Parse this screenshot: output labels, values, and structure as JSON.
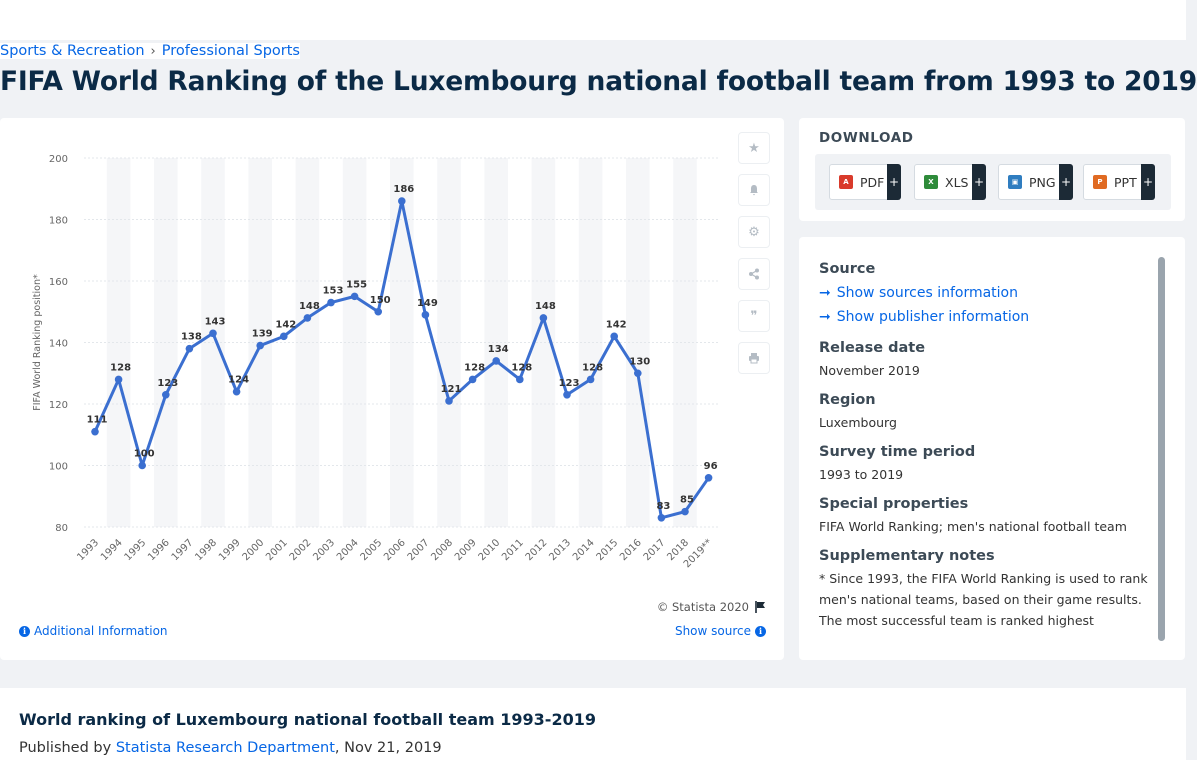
{
  "breadcrumb": {
    "items": [
      "Sports & Recreation",
      "Professional Sports"
    ],
    "separator": "›"
  },
  "page_title": "FIFA World Ranking of the Luxembourg national football team from 1993 to 2019",
  "chart_data": {
    "type": "line",
    "title": "",
    "xlabel": "",
    "ylabel": "FIFA World Ranking position*",
    "categories": [
      "1993",
      "1994",
      "1995",
      "1996",
      "1997",
      "1998",
      "1999",
      "2000",
      "2001",
      "2002",
      "2003",
      "2004",
      "2005",
      "2006",
      "2007",
      "2008",
      "2009",
      "2010",
      "2011",
      "2012",
      "2013",
      "2014",
      "2015",
      "2016",
      "2017",
      "2018",
      "2019**"
    ],
    "series": [
      {
        "name": "",
        "values": [
          111,
          128,
          100,
          123,
          138,
          143,
          124,
          139,
          142,
          148,
          153,
          155,
          150,
          186,
          149,
          121,
          128,
          134,
          128,
          148,
          123,
          128,
          142,
          130,
          83,
          85,
          96
        ]
      }
    ],
    "ylim": [
      80,
      200
    ],
    "yticks": [
      80,
      100,
      120,
      140,
      160,
      180,
      200
    ],
    "grid": "alternating vertical bands",
    "line_color": "#3b6fd0"
  },
  "toolbar": {
    "icons": [
      "star-icon",
      "bell-icon",
      "gear-icon",
      "share-icon",
      "quote-icon",
      "print-icon"
    ]
  },
  "chart_footer": {
    "copyright": "© Statista 2020",
    "additional_info": "Additional Information",
    "show_source": "Show source"
  },
  "download": {
    "title": "DOWNLOAD",
    "buttons": [
      {
        "label": "PDF",
        "color": "#d93a2b"
      },
      {
        "label": "XLS",
        "color": "#2e8b3a"
      },
      {
        "label": "PNG",
        "color": "#2f7dc0"
      },
      {
        "label": "PPT",
        "color": "#e06a22"
      }
    ],
    "plus": "+"
  },
  "details": {
    "source_label": "Source",
    "show_sources": "Show sources information",
    "show_publisher": "Show publisher information",
    "release_label": "Release date",
    "release_value": "November 2019",
    "region_label": "Region",
    "region_value": "Luxembourg",
    "survey_label": "Survey time period",
    "survey_value": "1993 to 2019",
    "special_label": "Special properties",
    "special_value": "FIFA World Ranking; men's national football team",
    "notes_label": "Supplementary notes",
    "notes_value": "* Since 1993, the FIFA World Ranking is used to rank men's national teams, based on their game results. The most successful team is ranked highest"
  },
  "bottom": {
    "title": "World ranking of Luxembourg national football team 1993-2019",
    "published_by": "Published by",
    "publisher": "Statista Research Department",
    "date": ", Nov 21, 2019"
  }
}
